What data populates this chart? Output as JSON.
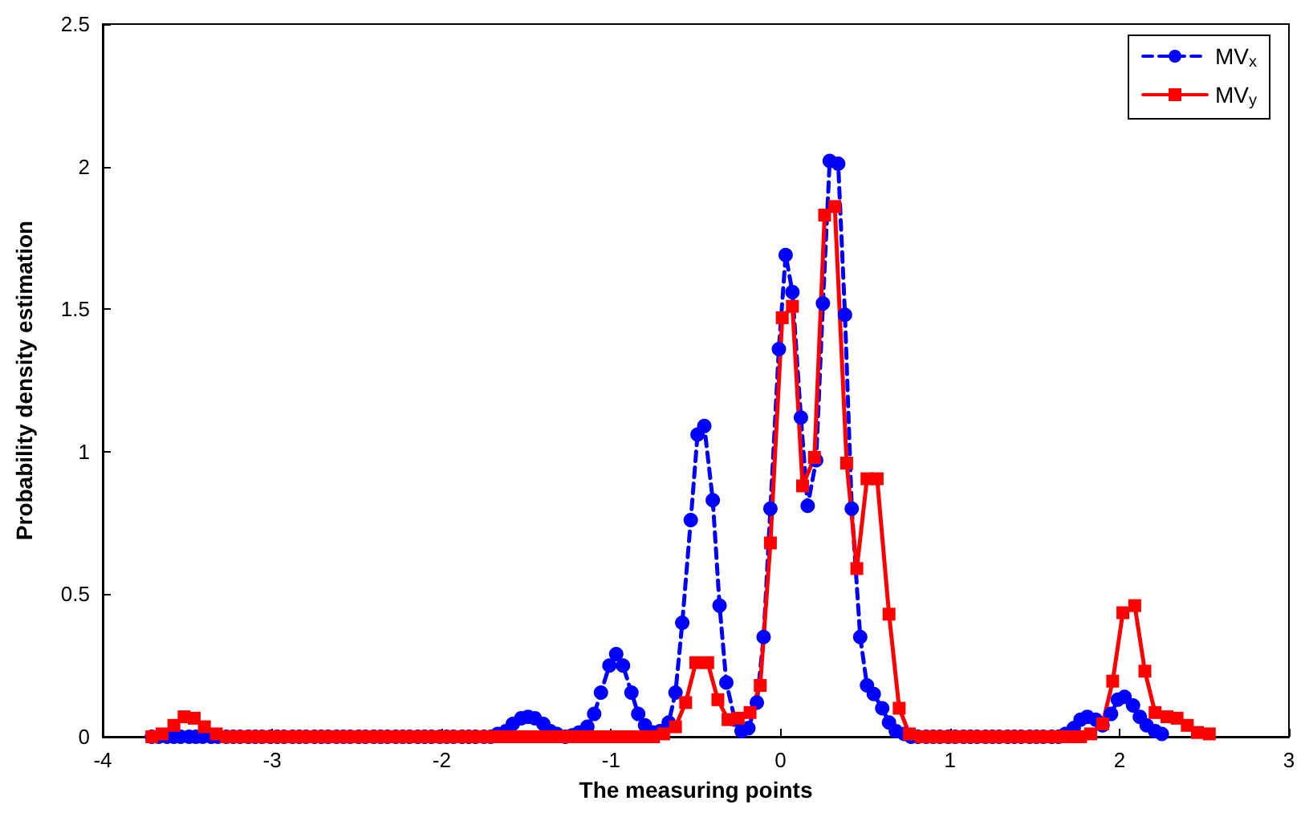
{
  "chart_data": {
    "type": "line",
    "xlabel": "The measuring points",
    "ylabel": "Probability density estimation",
    "xlim": [
      -4,
      3
    ],
    "xticks": [
      -4,
      -3,
      -2,
      -1,
      0,
      1,
      2,
      3
    ],
    "ylim": [
      0,
      2.5
    ],
    "yticks": [
      0,
      0.5,
      1,
      1.5,
      2,
      2.5
    ],
    "grid": false,
    "legend": "top right",
    "series": [
      {
        "name": "MV$_{x}$",
        "color": "#0000ff",
        "marker": "circle",
        "line_style": "dashed",
        "x": [
          -3.71,
          -3.67,
          -3.62,
          -3.58,
          -3.54,
          -3.49,
          -3.45,
          -3.41,
          -3.36,
          -3.32,
          -3.27,
          -3.23,
          -3.19,
          -3.14,
          -3.1,
          -3.06,
          -3.01,
          -2.97,
          -2.93,
          -2.88,
          -2.84,
          -2.8,
          -2.75,
          -2.71,
          -2.67,
          -2.62,
          -2.58,
          -2.54,
          -2.49,
          -2.45,
          -2.4,
          -2.36,
          -2.32,
          -2.27,
          -2.23,
          -2.19,
          -2.14,
          -2.1,
          -2.06,
          -2.01,
          -1.97,
          -1.93,
          -1.88,
          -1.84,
          -1.8,
          -1.75,
          -1.71,
          -1.67,
          -1.62,
          -1.58,
          -1.53,
          -1.49,
          -1.45,
          -1.4,
          -1.36,
          -1.32,
          -1.27,
          -1.23,
          -1.19,
          -1.14,
          -1.1,
          -1.06,
          -1.01,
          -0.97,
          -0.93,
          -0.88,
          -0.84,
          -0.8,
          -0.75,
          -0.71,
          -0.66,
          -0.62,
          -0.58,
          -0.53,
          -0.49,
          -0.45,
          -0.4,
          -0.36,
          -0.32,
          -0.27,
          -0.23,
          -0.19,
          -0.14,
          -0.1,
          -0.06,
          -0.01,
          0.03,
          0.07,
          0.12,
          0.16,
          0.21,
          0.25,
          0.29,
          0.34,
          0.38,
          0.42,
          0.47,
          0.51,
          0.55,
          0.6,
          0.64,
          0.68,
          0.73,
          0.77,
          0.81,
          0.86,
          0.9,
          0.94,
          0.99,
          1.03,
          1.08,
          1.12,
          1.16,
          1.21,
          1.25,
          1.29,
          1.34,
          1.38,
          1.42,
          1.47,
          1.51,
          1.55,
          1.6,
          1.64,
          1.68,
          1.73,
          1.77,
          1.81,
          1.86,
          1.9,
          1.95,
          1.99,
          2.03,
          2.08,
          2.12,
          2.16,
          2.21,
          2.25
        ],
        "values": [
          0,
          0,
          0,
          0,
          0,
          0,
          0,
          0,
          0,
          0,
          0,
          0,
          0,
          0,
          0,
          0,
          0,
          0,
          0,
          0,
          0,
          0,
          0,
          0,
          0,
          0,
          0,
          0,
          0,
          0,
          0,
          0,
          0,
          0,
          0,
          0,
          0,
          0,
          0,
          0,
          0,
          0,
          0,
          0,
          0,
          0,
          0,
          0.01,
          0.02,
          0.045,
          0.065,
          0.07,
          0.065,
          0.045,
          0.02,
          0.01,
          0,
          0.005,
          0.015,
          0.035,
          0.08,
          0.155,
          0.25,
          0.29,
          0.25,
          0.155,
          0.08,
          0.04,
          0.015,
          0.02,
          0.05,
          0.155,
          0.4,
          0.76,
          1.06,
          1.09,
          0.83,
          0.46,
          0.19,
          0.06,
          0.02,
          0.03,
          0.12,
          0.35,
          0.8,
          1.36,
          1.69,
          1.56,
          1.12,
          0.81,
          0.97,
          1.52,
          2.02,
          2.01,
          1.48,
          0.8,
          0.35,
          0.18,
          0.15,
          0.1,
          0.05,
          0.02,
          0.01,
          0,
          0,
          0,
          0,
          0,
          0,
          0,
          0,
          0,
          0,
          0,
          0,
          0,
          0,
          0,
          0,
          0,
          0,
          0,
          0,
          0,
          0.01,
          0.03,
          0.06,
          0.07,
          0.06,
          0.04,
          0.08,
          0.13,
          0.14,
          0.11,
          0.07,
          0.04,
          0.02,
          0.01
        ]
      },
      {
        "name": "MV$_{y}$",
        "color": "#ff0000",
        "marker": "square",
        "line_style": "solid",
        "x": [
          -3.71,
          -3.65,
          -3.58,
          -3.52,
          -3.46,
          -3.4,
          -3.33,
          -3.27,
          -3.21,
          -3.14,
          -3.08,
          -3.02,
          -2.95,
          -2.89,
          -2.83,
          -2.77,
          -2.7,
          -2.64,
          -2.58,
          -2.51,
          -2.45,
          -2.39,
          -2.32,
          -2.26,
          -2.2,
          -2.14,
          -2.07,
          -2.01,
          -1.95,
          -1.88,
          -1.82,
          -1.76,
          -1.69,
          -1.63,
          -1.57,
          -1.51,
          -1.44,
          -1.38,
          -1.32,
          -1.25,
          -1.19,
          -1.13,
          -1.06,
          -1.0,
          -0.94,
          -0.88,
          -0.81,
          -0.75,
          -0.69,
          -0.62,
          -0.56,
          -0.5,
          -0.43,
          -0.37,
          -0.31,
          -0.25,
          -0.18,
          -0.12,
          -0.06,
          0.01,
          0.07,
          0.13,
          0.2,
          0.26,
          0.32,
          0.39,
          0.45,
          0.51,
          0.57,
          0.64,
          0.7,
          0.76,
          0.83,
          0.89,
          0.95,
          1.02,
          1.08,
          1.14,
          1.2,
          1.27,
          1.33,
          1.39,
          1.46,
          1.52,
          1.58,
          1.65,
          1.71,
          1.77,
          1.83,
          1.9,
          1.96,
          2.02,
          2.09,
          2.15,
          2.21,
          2.28,
          2.34,
          2.4,
          2.46,
          2.53
        ],
        "values": [
          0,
          0.01,
          0.04,
          0.07,
          0.065,
          0.035,
          0.01,
          0,
          0,
          0,
          0,
          0,
          0,
          0,
          0,
          0,
          0,
          0,
          0,
          0,
          0,
          0,
          0,
          0,
          0,
          0,
          0,
          0,
          0,
          0,
          0,
          0,
          0,
          0,
          0,
          0,
          0,
          0,
          0,
          0,
          0,
          0,
          0,
          0,
          0,
          0,
          0,
          0,
          0.01,
          0.035,
          0.12,
          0.26,
          0.26,
          0.13,
          0.06,
          0.065,
          0.085,
          0.18,
          0.68,
          1.47,
          1.51,
          0.88,
          0.98,
          1.83,
          1.86,
          0.96,
          0.59,
          0.905,
          0.905,
          0.43,
          0.1,
          0.01,
          0,
          0,
          0,
          0,
          0,
          0,
          0,
          0,
          0,
          0,
          0,
          0,
          0,
          0,
          0,
          0,
          0.01,
          0.045,
          0.195,
          0.435,
          0.46,
          0.23,
          0.085,
          0.07,
          0.065,
          0.04,
          0.015,
          0.01
        ]
      }
    ]
  }
}
